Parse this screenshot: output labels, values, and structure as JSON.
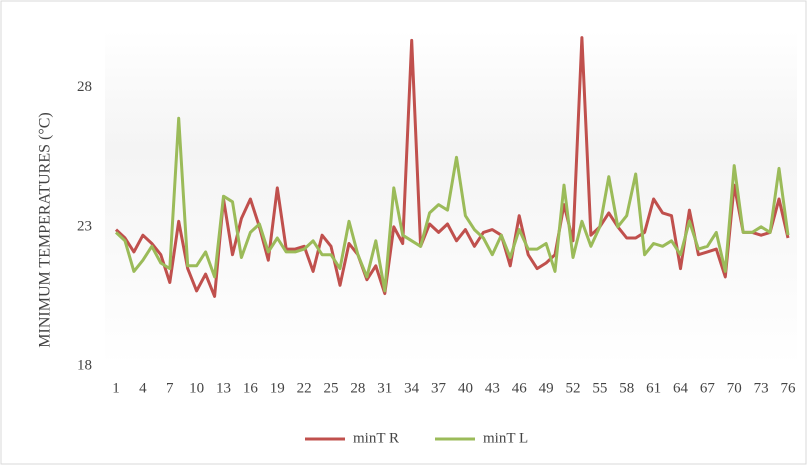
{
  "chart_data": {
    "type": "line",
    "y_label": "MINIMUM TEMPERATURES (°C)",
    "categories": [
      "1",
      null,
      null,
      "4",
      null,
      null,
      "7",
      null,
      null,
      "10",
      null,
      null,
      "13",
      null,
      null,
      "16",
      null,
      null,
      "19",
      null,
      null,
      "22",
      null,
      null,
      "25",
      null,
      null,
      "28",
      null,
      null,
      "31",
      null,
      null,
      "34",
      null,
      null,
      "37",
      null,
      null,
      "40",
      null,
      null,
      "43",
      null,
      null,
      "46",
      null,
      null,
      "49",
      null,
      null,
      "52",
      null,
      null,
      "55",
      null,
      null,
      "58",
      null,
      null,
      "61",
      null,
      null,
      "64",
      null,
      null,
      "67",
      null,
      null,
      "70",
      null,
      null,
      "73",
      null,
      null,
      "76"
    ],
    "series": [
      {
        "name": "minT R",
        "color": "#c0504d",
        "values": [
          22.9,
          22.6,
          22.1,
          22.7,
          22.4,
          22.0,
          21.0,
          23.2,
          21.5,
          20.7,
          21.3,
          20.5,
          24.0,
          22.0,
          23.3,
          24.0,
          23.0,
          21.8,
          24.4,
          22.2,
          22.2,
          22.3,
          21.4,
          22.7,
          22.3,
          20.9,
          22.4,
          22.0,
          21.1,
          21.6,
          20.6,
          23.0,
          22.4,
          29.7,
          22.3,
          23.1,
          22.8,
          23.1,
          22.5,
          22.9,
          22.3,
          22.8,
          22.9,
          22.7,
          21.6,
          23.4,
          22.0,
          21.5,
          21.7,
          22.0,
          23.8,
          22.5,
          29.8,
          22.7,
          23.0,
          23.5,
          23.0,
          22.6,
          22.6,
          22.8,
          24.0,
          23.5,
          23.4,
          21.5,
          23.6,
          22.0,
          22.1,
          22.2,
          21.2,
          24.5,
          22.8,
          22.8,
          22.7,
          22.8,
          24.0,
          22.6
        ]
      },
      {
        "name": "minT L",
        "color": "#9bbb59",
        "values": [
          22.8,
          22.5,
          21.4,
          21.8,
          22.3,
          21.7,
          21.5,
          26.9,
          21.6,
          21.6,
          22.1,
          21.2,
          24.1,
          23.9,
          21.9,
          22.8,
          23.1,
          22.1,
          22.6,
          22.1,
          22.1,
          22.2,
          22.5,
          22.0,
          22.0,
          21.5,
          23.2,
          22.0,
          21.2,
          22.5,
          20.7,
          24.4,
          22.7,
          22.5,
          22.3,
          23.5,
          23.8,
          23.6,
          25.5,
          23.4,
          22.9,
          22.6,
          22.0,
          22.7,
          21.9,
          22.9,
          22.2,
          22.2,
          22.4,
          21.4,
          24.5,
          21.9,
          23.2,
          22.3,
          23.0,
          24.8,
          23.0,
          23.4,
          24.9,
          22.0,
          22.4,
          22.3,
          22.5,
          22.0,
          23.2,
          22.2,
          22.3,
          22.8,
          21.4,
          25.2,
          22.8,
          22.8,
          23.0,
          22.8,
          25.1,
          22.7
        ]
      }
    ],
    "ylim": [
      18,
      30
    ],
    "yticks": [
      18,
      23,
      28
    ],
    "legend": "bottom"
  }
}
